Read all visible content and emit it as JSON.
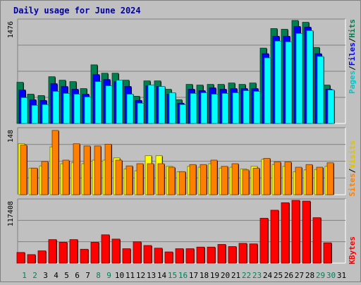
{
  "chart_data": [
    {
      "type": "bar",
      "panel": "top",
      "title": "Daily usage for June 2024",
      "categories": [
        "1",
        "2",
        "3",
        "4",
        "5",
        "6",
        "7",
        "8",
        "9",
        "10",
        "11",
        "12",
        "13",
        "14",
        "15",
        "16",
        "17",
        "18",
        "19",
        "20",
        "21",
        "22",
        "23",
        "24",
        "25",
        "26",
        "27",
        "28",
        "29",
        "30",
        "31"
      ],
      "weekend_days": [
        "1",
        "2",
        "8",
        "9",
        "15",
        "16",
        "22",
        "23",
        "29",
        "30"
      ],
      "max_label": "1476",
      "ylim": [
        0,
        1476
      ],
      "legend": [
        "Pages",
        "/",
        "Files",
        "/",
        "Hits"
      ],
      "series": [
        {
          "name": "Hits",
          "color": "#007f4f",
          "values": [
            590,
            420,
            400,
            670,
            620,
            600,
            500,
            840,
            720,
            720,
            620,
            390,
            610,
            610,
            490,
            340,
            560,
            550,
            560,
            560,
            580,
            560,
            580,
            1080,
            1360,
            1350,
            1476,
            1450,
            1090,
            550,
            0
          ]
        },
        {
          "name": "Files",
          "color": "#0000ff",
          "values": [
            480,
            340,
            330,
            570,
            530,
            490,
            420,
            700,
            630,
            600,
            530,
            330,
            540,
            530,
            420,
            290,
            490,
            470,
            510,
            490,
            500,
            500,
            500,
            1000,
            1250,
            1250,
            1390,
            1380,
            1000,
            490,
            0
          ]
        },
        {
          "name": "Pages",
          "color": "#00ffff",
          "values": [
            370,
            260,
            270,
            460,
            430,
            420,
            380,
            600,
            540,
            620,
            420,
            290,
            550,
            530,
            440,
            270,
            430,
            440,
            420,
            430,
            440,
            470,
            460,
            940,
            1180,
            1170,
            1290,
            1330,
            960,
            480,
            0
          ]
        }
      ]
    },
    {
      "type": "bar",
      "panel": "middle",
      "categories": [
        "1",
        "2",
        "3",
        "4",
        "5",
        "6",
        "7",
        "8",
        "9",
        "10",
        "11",
        "12",
        "13",
        "14",
        "15",
        "16",
        "17",
        "18",
        "19",
        "20",
        "21",
        "22",
        "23",
        "24",
        "25",
        "26",
        "27",
        "28",
        "29",
        "30",
        "31"
      ],
      "max_label": "148",
      "ylim": [
        0,
        148
      ],
      "legend": [
        "Sites",
        "/",
        "Visits"
      ],
      "series": [
        {
          "name": "Visits",
          "color": "#ffff00",
          "values": [
            115,
            60,
            65,
            108,
            70,
            72,
            70,
            78,
            78,
            83,
            58,
            54,
            88,
            88,
            64,
            52,
            64,
            62,
            70,
            60,
            62,
            58,
            64,
            80,
            68,
            64,
            52,
            56,
            57,
            64,
            0
          ]
        },
        {
          "name": "Sites",
          "color": "#ff8000",
          "values": [
            112,
            60,
            75,
            145,
            78,
            115,
            110,
            110,
            114,
            78,
            65,
            70,
            70,
            70,
            62,
            52,
            68,
            68,
            78,
            64,
            70,
            56,
            60,
            82,
            74,
            74,
            62,
            68,
            62,
            72,
            0
          ]
        }
      ]
    },
    {
      "type": "bar",
      "panel": "bottom",
      "categories": [
        "1",
        "2",
        "3",
        "4",
        "5",
        "6",
        "7",
        "8",
        "9",
        "10",
        "11",
        "12",
        "13",
        "14",
        "15",
        "16",
        "17",
        "18",
        "19",
        "20",
        "21",
        "22",
        "23",
        "24",
        "25",
        "26",
        "27",
        "28",
        "29",
        "30",
        "31"
      ],
      "max_label": "117408",
      "ylim": [
        0,
        117408
      ],
      "legend": [
        "KBytes"
      ],
      "series": [
        {
          "name": "KBytes",
          "color": "#ff0000",
          "values": [
            20000,
            16000,
            23000,
            44000,
            39000,
            44000,
            26000,
            39000,
            53000,
            45000,
            27000,
            40000,
            33000,
            28000,
            21000,
            27000,
            27000,
            30000,
            30000,
            35000,
            31000,
            37000,
            36000,
            84000,
            99000,
            113000,
            117408,
            116000,
            85000,
            38000,
            0
          ]
        }
      ]
    }
  ]
}
